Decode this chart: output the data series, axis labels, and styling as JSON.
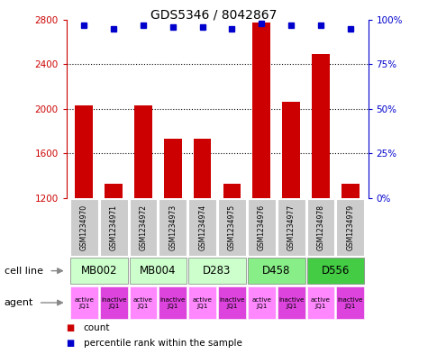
{
  "title": "GDS5346 / 8042867",
  "samples": [
    "GSM1234970",
    "GSM1234971",
    "GSM1234972",
    "GSM1234973",
    "GSM1234974",
    "GSM1234975",
    "GSM1234976",
    "GSM1234977",
    "GSM1234978",
    "GSM1234979"
  ],
  "counts": [
    2030,
    1330,
    2030,
    1730,
    1730,
    1330,
    2770,
    2060,
    2490,
    1330
  ],
  "percentiles": [
    97,
    95,
    97,
    96,
    96,
    95,
    98,
    97,
    97,
    95
  ],
  "ylim_left": [
    1200,
    2800
  ],
  "ylim_right": [
    0,
    100
  ],
  "yticks_left": [
    1200,
    1600,
    2000,
    2400,
    2800
  ],
  "yticks_right": [
    0,
    25,
    50,
    75,
    100
  ],
  "cell_lines": [
    {
      "label": "MB002",
      "cols": [
        0,
        1
      ],
      "color": "#ccffcc"
    },
    {
      "label": "MB004",
      "cols": [
        2,
        3
      ],
      "color": "#ccffcc"
    },
    {
      "label": "D283",
      "cols": [
        4,
        5
      ],
      "color": "#ccffcc"
    },
    {
      "label": "D458",
      "cols": [
        6,
        7
      ],
      "color": "#88ee88"
    },
    {
      "label": "D556",
      "cols": [
        8,
        9
      ],
      "color": "#44cc44"
    }
  ],
  "agent_active_color": "#ff88ff",
  "agent_inactive_color": "#dd44dd",
  "bar_color": "#cc0000",
  "dot_color": "#0000cc",
  "sample_bg": "#cccccc",
  "ylabel_left_color": "#cc0000",
  "ylabel_right_color": "#0000cc",
  "legend_count_color": "#cc0000",
  "legend_pct_color": "#0000cc",
  "fig_width": 4.75,
  "fig_height": 3.93,
  "dpi": 100
}
